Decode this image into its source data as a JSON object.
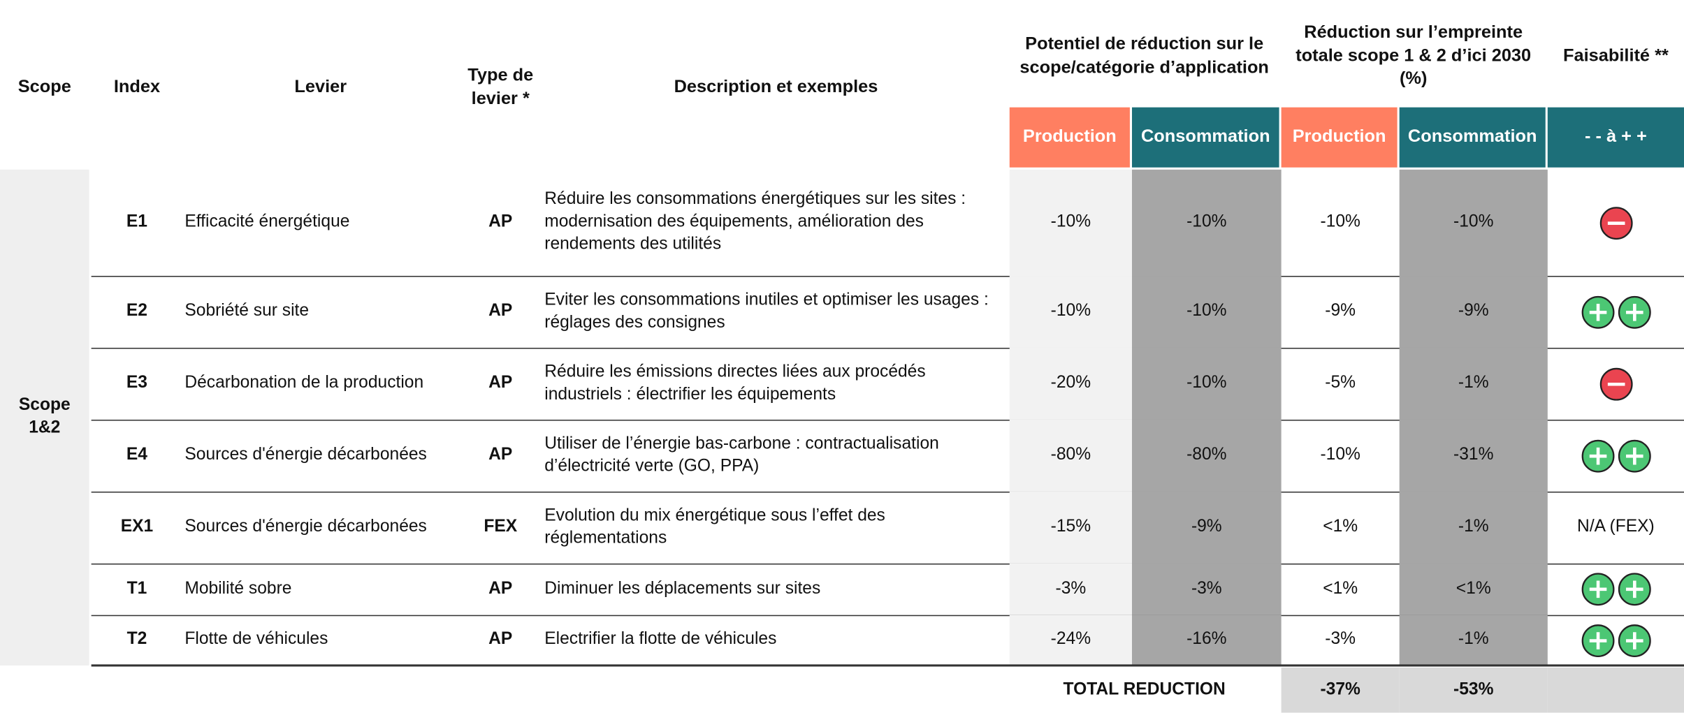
{
  "header": {
    "scope": "Scope",
    "index": "Index",
    "lever": "Levier",
    "type": "Type de levier *",
    "description": "Description et exemples",
    "potential": "Potentiel de réduction sur le scope/catégorie d’application",
    "reduction": "Réduction sur l’empreinte totale scope 1 & 2 d’ici 2030 (%)",
    "feasibility": "Faisabilité **",
    "production": "Production",
    "consumption": "Consommation",
    "feasibility_scale": "- - à + +"
  },
  "scope": "Scope 1&2",
  "rows": [
    {
      "index": "E1",
      "lever": "Efficacité énergétique",
      "type": "AP",
      "description": "Réduire les consommations énergétiques sur les sites : modernisation des équipements, amélioration des rendements des utilités",
      "potential": [
        "-10%",
        "-10%"
      ],
      "reduction": [
        "-10%",
        "-10%"
      ],
      "feasibility": "-"
    },
    {
      "index": "E2",
      "lever": "Sobriété sur site",
      "type": "AP",
      "description": "Eviter les consommations inutiles et optimiser les usages : réglages des consignes",
      "potential": [
        "-10%",
        "-10%"
      ],
      "reduction": [
        "-9%",
        "-9%"
      ],
      "feasibility": "++"
    },
    {
      "index": "E3",
      "lever": "Décarbonation de la production",
      "type": "AP",
      "description": "Réduire les émissions directes liées aux procédés industriels : électrifier les équipements",
      "potential": [
        "-20%",
        "-10%"
      ],
      "reduction": [
        "-5%",
        "-1%"
      ],
      "feasibility": "-"
    },
    {
      "index": "E4",
      "lever": "Sources d'énergie décarbonées",
      "type": "AP",
      "description": "Utiliser de l’énergie bas-carbone : contractualisation d’électricité verte (GO, PPA)",
      "potential": [
        "-80%",
        "-80%"
      ],
      "reduction": [
        "-10%",
        "-31%"
      ],
      "feasibility": "++"
    },
    {
      "index": "EX1",
      "lever": "Sources d'énergie décarbonées",
      "type": "FEX",
      "description": "Evolution du mix énergétique sous l’effet des réglementations",
      "potential": [
        "-15%",
        "-9%"
      ],
      "reduction": [
        "<1%",
        "-1%"
      ],
      "feasibility": "N/A (FEX)"
    },
    {
      "index": "T1",
      "lever": "Mobilité sobre",
      "type": "AP",
      "description": "Diminuer les déplacements sur sites",
      "potential": [
        "-3%",
        "-3%"
      ],
      "reduction": [
        "<1%",
        "<1%"
      ],
      "feasibility": "++"
    },
    {
      "index": "T2",
      "lever": "Flotte de véhicules",
      "type": "AP",
      "description": "Electrifier la flotte de véhicules",
      "potential": [
        "-24%",
        "-16%"
      ],
      "reduction": [
        "-3%",
        "-1%"
      ],
      "feasibility": "++"
    }
  ],
  "total": {
    "label": "TOTAL REDUCTION",
    "values": [
      "-37%",
      "-53%"
    ]
  }
}
